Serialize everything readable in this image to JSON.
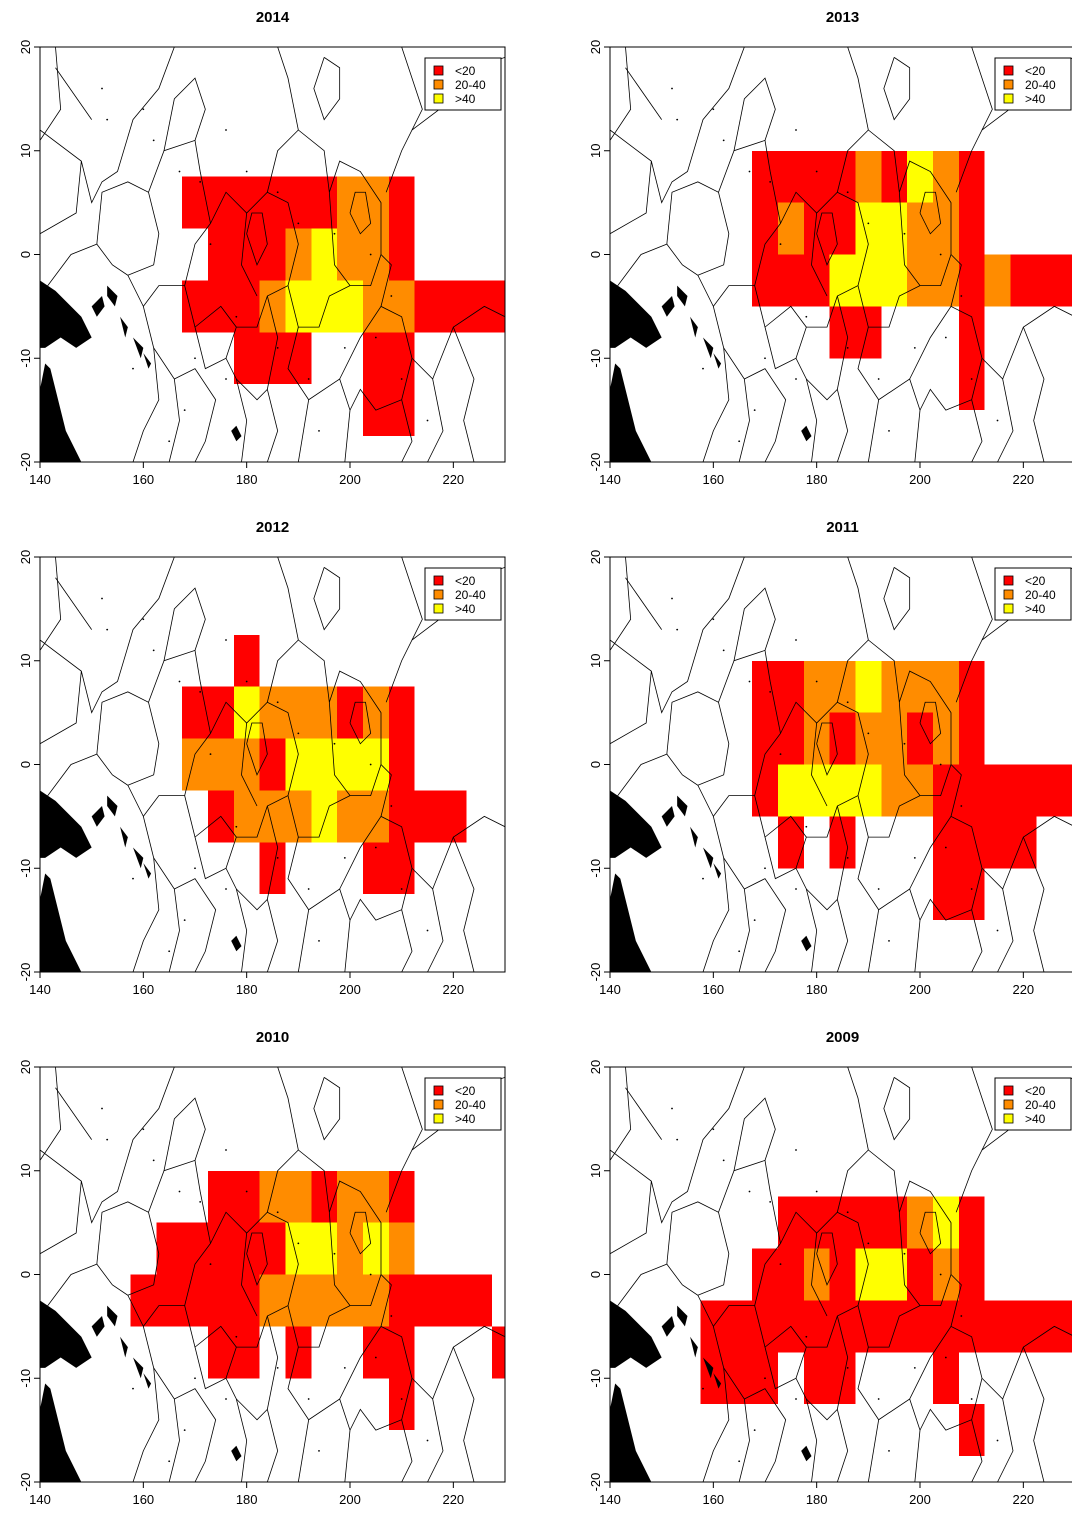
{
  "legend": {
    "items": [
      {
        "label": "<20",
        "color": "#ff0000"
      },
      {
        "label": "20-40",
        "color": "#ff8c00"
      },
      {
        "label": ">40",
        "color": "#ffff00"
      }
    ]
  },
  "axes": {
    "xlim": [
      140,
      230
    ],
    "ylim": [
      -20,
      20
    ],
    "xticks": [
      "140",
      "160",
      "180",
      "200",
      "220"
    ],
    "yticks": [
      "-20",
      "-10",
      "0",
      "10",
      "20"
    ],
    "xtick_values": [
      140,
      160,
      180,
      200,
      220
    ],
    "ytick_values": [
      -20,
      -10,
      0,
      10,
      20
    ]
  },
  "colors": {
    "boundary": "#000000",
    "land": "#000000"
  },
  "chart_data": [
    {
      "type": "heatmap",
      "title": "2014",
      "cells": [
        {
          "x0": 167.5,
          "x1": 172.5,
          "y0": 2.5,
          "y1": 7.5,
          "v": "<20"
        },
        {
          "x0": 172.5,
          "x1": 197.5,
          "y0": 2.5,
          "y1": 7.5,
          "v": "<20"
        },
        {
          "x0": 197.5,
          "x1": 207.5,
          "y0": 2.5,
          "y1": 7.5,
          "v": "20-40"
        },
        {
          "x0": 207.5,
          "x1": 212.5,
          "y0": 2.5,
          "y1": 7.5,
          "v": "<20"
        },
        {
          "x0": 172.5,
          "x1": 187.5,
          "y0": -2.5,
          "y1": 2.5,
          "v": "<20"
        },
        {
          "x0": 187.5,
          "x1": 192.5,
          "y0": -2.5,
          "y1": 2.5,
          "v": "20-40"
        },
        {
          "x0": 192.5,
          "x1": 197.5,
          "y0": -2.5,
          "y1": 2.5,
          "v": ">40"
        },
        {
          "x0": 197.5,
          "x1": 207.5,
          "y0": -2.5,
          "y1": 2.5,
          "v": "20-40"
        },
        {
          "x0": 207.5,
          "x1": 212.5,
          "y0": -2.5,
          "y1": 2.5,
          "v": "<20"
        },
        {
          "x0": 167.5,
          "x1": 182.5,
          "y0": -7.5,
          "y1": -2.5,
          "v": "<20"
        },
        {
          "x0": 182.5,
          "x1": 187.5,
          "y0": -7.5,
          "y1": -2.5,
          "v": "20-40"
        },
        {
          "x0": 187.5,
          "x1": 202.5,
          "y0": -7.5,
          "y1": -2.5,
          "v": ">40"
        },
        {
          "x0": 202.5,
          "x1": 212.5,
          "y0": -7.5,
          "y1": -2.5,
          "v": "20-40"
        },
        {
          "x0": 212.5,
          "x1": 230,
          "y0": -7.5,
          "y1": -2.5,
          "v": "<20"
        },
        {
          "x0": 177.5,
          "x1": 192.5,
          "y0": -12.5,
          "y1": -7.5,
          "v": "<20"
        },
        {
          "x0": 202.5,
          "x1": 212.5,
          "y0": -12.5,
          "y1": -7.5,
          "v": "<20"
        },
        {
          "x0": 202.5,
          "x1": 212.5,
          "y0": -17.5,
          "y1": -12.5,
          "v": "<20"
        }
      ]
    },
    {
      "type": "heatmap",
      "title": "2013",
      "cells": [
        {
          "x0": 167.5,
          "x1": 187.5,
          "y0": 5,
          "y1": 10,
          "v": "<20"
        },
        {
          "x0": 187.5,
          "x1": 192.5,
          "y0": 5,
          "y1": 10,
          "v": "20-40"
        },
        {
          "x0": 192.5,
          "x1": 197.5,
          "y0": 5,
          "y1": 10,
          "v": "<20"
        },
        {
          "x0": 197.5,
          "x1": 202.5,
          "y0": 5,
          "y1": 10,
          "v": ">40"
        },
        {
          "x0": 202.5,
          "x1": 207.5,
          "y0": 5,
          "y1": 10,
          "v": "20-40"
        },
        {
          "x0": 207.5,
          "x1": 212.5,
          "y0": 5,
          "y1": 10,
          "v": "<20"
        },
        {
          "x0": 167.5,
          "x1": 172.5,
          "y0": 0,
          "y1": 5,
          "v": "<20"
        },
        {
          "x0": 172.5,
          "x1": 177.5,
          "y0": 0,
          "y1": 5,
          "v": "20-40"
        },
        {
          "x0": 177.5,
          "x1": 187.5,
          "y0": 0,
          "y1": 5,
          "v": "<20"
        },
        {
          "x0": 187.5,
          "x1": 197.5,
          "y0": 0,
          "y1": 5,
          "v": ">40"
        },
        {
          "x0": 197.5,
          "x1": 207.5,
          "y0": 0,
          "y1": 5,
          "v": "20-40"
        },
        {
          "x0": 207.5,
          "x1": 212.5,
          "y0": 0,
          "y1": 5,
          "v": "<20"
        },
        {
          "x0": 167.5,
          "x1": 182.5,
          "y0": -5,
          "y1": 0,
          "v": "<20"
        },
        {
          "x0": 182.5,
          "x1": 197.5,
          "y0": -5,
          "y1": 0,
          "v": ">40"
        },
        {
          "x0": 197.5,
          "x1": 207.5,
          "y0": -5,
          "y1": 0,
          "v": "20-40"
        },
        {
          "x0": 207.5,
          "x1": 212.5,
          "y0": -5,
          "y1": 0,
          "v": "<20"
        },
        {
          "x0": 212.5,
          "x1": 217.5,
          "y0": -5,
          "y1": 0,
          "v": "20-40"
        },
        {
          "x0": 217.5,
          "x1": 230,
          "y0": -5,
          "y1": 0,
          "v": "<20"
        },
        {
          "x0": 182.5,
          "x1": 192.5,
          "y0": -10,
          "y1": -5,
          "v": "<20"
        },
        {
          "x0": 207.5,
          "x1": 212.5,
          "y0": -15,
          "y1": -5,
          "v": "<20"
        }
      ]
    },
    {
      "type": "heatmap",
      "title": "2012",
      "cells": [
        {
          "x0": 177.5,
          "x1": 182.5,
          "y0": 7.5,
          "y1": 12.5,
          "v": "<20"
        },
        {
          "x0": 167.5,
          "x1": 177.5,
          "y0": 2.5,
          "y1": 7.5,
          "v": "<20"
        },
        {
          "x0": 177.5,
          "x1": 182.5,
          "y0": 2.5,
          "y1": 7.5,
          "v": ">40"
        },
        {
          "x0": 182.5,
          "x1": 197.5,
          "y0": 2.5,
          "y1": 7.5,
          "v": "20-40"
        },
        {
          "x0": 197.5,
          "x1": 202.5,
          "y0": 2.5,
          "y1": 7.5,
          "v": "<20"
        },
        {
          "x0": 202.5,
          "x1": 207.5,
          "y0": 2.5,
          "y1": 7.5,
          "v": "20-40"
        },
        {
          "x0": 207.5,
          "x1": 212.5,
          "y0": 2.5,
          "y1": 7.5,
          "v": "<20"
        },
        {
          "x0": 167.5,
          "x1": 182.5,
          "y0": -2.5,
          "y1": 2.5,
          "v": "20-40"
        },
        {
          "x0": 182.5,
          "x1": 187.5,
          "y0": -2.5,
          "y1": 2.5,
          "v": "<20"
        },
        {
          "x0": 187.5,
          "x1": 207.5,
          "y0": -2.5,
          "y1": 2.5,
          "v": ">40"
        },
        {
          "x0": 207.5,
          "x1": 212.5,
          "y0": -2.5,
          "y1": 2.5,
          "v": "<20"
        },
        {
          "x0": 172.5,
          "x1": 177.5,
          "y0": -7.5,
          "y1": -2.5,
          "v": "<20"
        },
        {
          "x0": 177.5,
          "x1": 192.5,
          "y0": -7.5,
          "y1": -2.5,
          "v": "20-40"
        },
        {
          "x0": 192.5,
          "x1": 197.5,
          "y0": -7.5,
          "y1": -2.5,
          "v": ">40"
        },
        {
          "x0": 197.5,
          "x1": 207.5,
          "y0": -7.5,
          "y1": -2.5,
          "v": "20-40"
        },
        {
          "x0": 207.5,
          "x1": 222.5,
          "y0": -7.5,
          "y1": -2.5,
          "v": "<20"
        },
        {
          "x0": 182.5,
          "x1": 187.5,
          "y0": -12.5,
          "y1": -7.5,
          "v": "<20"
        },
        {
          "x0": 202.5,
          "x1": 212.5,
          "y0": -12.5,
          "y1": -7.5,
          "v": "<20"
        }
      ]
    },
    {
      "type": "heatmap",
      "title": "2011",
      "cells": [
        {
          "x0": 167.5,
          "x1": 177.5,
          "y0": 5,
          "y1": 10,
          "v": "<20"
        },
        {
          "x0": 177.5,
          "x1": 187.5,
          "y0": 5,
          "y1": 10,
          "v": "20-40"
        },
        {
          "x0": 187.5,
          "x1": 192.5,
          "y0": 5,
          "y1": 10,
          "v": ">40"
        },
        {
          "x0": 192.5,
          "x1": 207.5,
          "y0": 5,
          "y1": 10,
          "v": "20-40"
        },
        {
          "x0": 207.5,
          "x1": 212.5,
          "y0": 5,
          "y1": 10,
          "v": "<20"
        },
        {
          "x0": 167.5,
          "x1": 177.5,
          "y0": 0,
          "y1": 5,
          "v": "<20"
        },
        {
          "x0": 177.5,
          "x1": 182.5,
          "y0": 0,
          "y1": 5,
          "v": "20-40"
        },
        {
          "x0": 182.5,
          "x1": 187.5,
          "y0": 0,
          "y1": 5,
          "v": "<20"
        },
        {
          "x0": 187.5,
          "x1": 197.5,
          "y0": 0,
          "y1": 5,
          "v": "20-40"
        },
        {
          "x0": 197.5,
          "x1": 202.5,
          "y0": 0,
          "y1": 5,
          "v": "<20"
        },
        {
          "x0": 202.5,
          "x1": 207.5,
          "y0": 0,
          "y1": 5,
          "v": "20-40"
        },
        {
          "x0": 207.5,
          "x1": 212.5,
          "y0": 0,
          "y1": 5,
          "v": "<20"
        },
        {
          "x0": 167.5,
          "x1": 172.5,
          "y0": -5,
          "y1": 0,
          "v": "<20"
        },
        {
          "x0": 172.5,
          "x1": 192.5,
          "y0": -5,
          "y1": 0,
          "v": ">40"
        },
        {
          "x0": 192.5,
          "x1": 202.5,
          "y0": -5,
          "y1": 0,
          "v": "20-40"
        },
        {
          "x0": 202.5,
          "x1": 230,
          "y0": -5,
          "y1": 0,
          "v": "<20"
        },
        {
          "x0": 172.5,
          "x1": 177.5,
          "y0": -10,
          "y1": -5,
          "v": "<20"
        },
        {
          "x0": 182.5,
          "x1": 187.5,
          "y0": -10,
          "y1": -5,
          "v": "<20"
        },
        {
          "x0": 202.5,
          "x1": 222.5,
          "y0": -10,
          "y1": -5,
          "v": "<20"
        },
        {
          "x0": 202.5,
          "x1": 212.5,
          "y0": -15,
          "y1": -10,
          "v": "<20"
        }
      ]
    },
    {
      "type": "heatmap",
      "title": "2010",
      "cells": [
        {
          "x0": 172.5,
          "x1": 182.5,
          "y0": 5,
          "y1": 10,
          "v": "<20"
        },
        {
          "x0": 182.5,
          "x1": 192.5,
          "y0": 5,
          "y1": 10,
          "v": "20-40"
        },
        {
          "x0": 192.5,
          "x1": 197.5,
          "y0": 5,
          "y1": 10,
          "v": "<20"
        },
        {
          "x0": 197.5,
          "x1": 207.5,
          "y0": 5,
          "y1": 10,
          "v": "20-40"
        },
        {
          "x0": 207.5,
          "x1": 212.5,
          "y0": 5,
          "y1": 10,
          "v": "<20"
        },
        {
          "x0": 162.5,
          "x1": 187.5,
          "y0": 0,
          "y1": 5,
          "v": "<20"
        },
        {
          "x0": 187.5,
          "x1": 197.5,
          "y0": 0,
          "y1": 5,
          "v": ">40"
        },
        {
          "x0": 197.5,
          "x1": 202.5,
          "y0": 0,
          "y1": 5,
          "v": "20-40"
        },
        {
          "x0": 202.5,
          "x1": 207.5,
          "y0": 0,
          "y1": 5,
          "v": ">40"
        },
        {
          "x0": 207.5,
          "x1": 212.5,
          "y0": 0,
          "y1": 5,
          "v": "20-40"
        },
        {
          "x0": 157.5,
          "x1": 182.5,
          "y0": -5,
          "y1": 0,
          "v": "<20"
        },
        {
          "x0": 182.5,
          "x1": 207.5,
          "y0": -5,
          "y1": 0,
          "v": "20-40"
        },
        {
          "x0": 207.5,
          "x1": 227.5,
          "y0": -5,
          "y1": 0,
          "v": "<20"
        },
        {
          "x0": 172.5,
          "x1": 182.5,
          "y0": -10,
          "y1": -5,
          "v": "<20"
        },
        {
          "x0": 187.5,
          "x1": 192.5,
          "y0": -10,
          "y1": -5,
          "v": "<20"
        },
        {
          "x0": 202.5,
          "x1": 212.5,
          "y0": -10,
          "y1": -5,
          "v": "<20"
        },
        {
          "x0": 227.5,
          "x1": 230,
          "y0": -10,
          "y1": -5,
          "v": "<20"
        },
        {
          "x0": 207.5,
          "x1": 212.5,
          "y0": -15,
          "y1": -10,
          "v": "<20"
        }
      ]
    },
    {
      "type": "heatmap",
      "title": "2009",
      "cells": [
        {
          "x0": 172.5,
          "x1": 197.5,
          "y0": 2.5,
          "y1": 7.5,
          "v": "<20"
        },
        {
          "x0": 197.5,
          "x1": 202.5,
          "y0": 2.5,
          "y1": 7.5,
          "v": "20-40"
        },
        {
          "x0": 202.5,
          "x1": 207.5,
          "y0": 2.5,
          "y1": 7.5,
          "v": ">40"
        },
        {
          "x0": 207.5,
          "x1": 212.5,
          "y0": 2.5,
          "y1": 7.5,
          "v": "<20"
        },
        {
          "x0": 167.5,
          "x1": 177.5,
          "y0": -2.5,
          "y1": 2.5,
          "v": "<20"
        },
        {
          "x0": 177.5,
          "x1": 182.5,
          "y0": -2.5,
          "y1": 2.5,
          "v": "20-40"
        },
        {
          "x0": 182.5,
          "x1": 187.5,
          "y0": -2.5,
          "y1": 2.5,
          "v": "<20"
        },
        {
          "x0": 187.5,
          "x1": 197.5,
          "y0": -2.5,
          "y1": 2.5,
          "v": ">40"
        },
        {
          "x0": 197.5,
          "x1": 202.5,
          "y0": -2.5,
          "y1": 2.5,
          "v": "<20"
        },
        {
          "x0": 202.5,
          "x1": 207.5,
          "y0": -2.5,
          "y1": 2.5,
          "v": "20-40"
        },
        {
          "x0": 207.5,
          "x1": 212.5,
          "y0": -2.5,
          "y1": 2.5,
          "v": "<20"
        },
        {
          "x0": 157.5,
          "x1": 230,
          "y0": -7.5,
          "y1": -2.5,
          "v": "<20"
        },
        {
          "x0": 157.5,
          "x1": 172.5,
          "y0": -12.5,
          "y1": -7.5,
          "v": "<20"
        },
        {
          "x0": 177.5,
          "x1": 187.5,
          "y0": -12.5,
          "y1": -7.5,
          "v": "<20"
        },
        {
          "x0": 202.5,
          "x1": 207.5,
          "y0": -12.5,
          "y1": -7.5,
          "v": "<20"
        },
        {
          "x0": 207.5,
          "x1": 212.5,
          "y0": -17.5,
          "y1": -12.5,
          "v": "<20"
        }
      ]
    }
  ]
}
